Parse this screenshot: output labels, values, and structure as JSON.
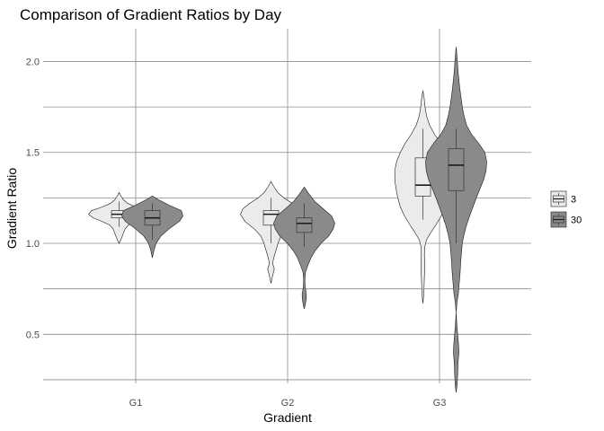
{
  "chart_data": {
    "type": "violin",
    "title": "Comparison of Gradient Ratios by Day",
    "xlabel": "Gradient",
    "ylabel": "Gradient Ratio",
    "categories": [
      "G1",
      "G2",
      "G3"
    ],
    "ylim": [
      0.23,
      2.18
    ],
    "yticks": [
      0.5,
      1.0,
      1.5,
      2.0
    ],
    "ytick_labels": [
      "0.5",
      "1.0",
      "1.5",
      "2.0"
    ],
    "grid": true,
    "legend": {
      "position": "right",
      "entries": [
        "3",
        "30"
      ]
    },
    "series": [
      {
        "name": "3",
        "color": "#ebebeb",
        "violins": [
          {
            "category": "G1",
            "profile": [
              [
                1.0,
                0.0
              ],
              [
                1.02,
                0.06
              ],
              [
                1.05,
                0.13
              ],
              [
                1.08,
                0.2
              ],
              [
                1.1,
                0.3
              ],
              [
                1.12,
                0.55
              ],
              [
                1.14,
                0.85
              ],
              [
                1.16,
                1.0
              ],
              [
                1.18,
                0.9
              ],
              [
                1.2,
                0.55
              ],
              [
                1.22,
                0.28
              ],
              [
                1.24,
                0.14
              ],
              [
                1.26,
                0.06
              ],
              [
                1.28,
                0.0
              ]
            ],
            "box": {
              "q1": 1.14,
              "median": 1.16,
              "q3": 1.18,
              "whisker_low": 1.09,
              "whisker_high": 1.23
            }
          },
          {
            "category": "G2",
            "profile": [
              [
                0.78,
                0.0
              ],
              [
                0.82,
                0.05
              ],
              [
                0.86,
                0.11
              ],
              [
                0.89,
                0.05
              ],
              [
                0.92,
                0.09
              ],
              [
                0.96,
                0.16
              ],
              [
                1.0,
                0.23
              ],
              [
                1.04,
                0.33
              ],
              [
                1.08,
                0.55
              ],
              [
                1.12,
                0.85
              ],
              [
                1.16,
                1.0
              ],
              [
                1.19,
                0.92
              ],
              [
                1.22,
                0.7
              ],
              [
                1.25,
                0.42
              ],
              [
                1.28,
                0.22
              ],
              [
                1.31,
                0.1
              ],
              [
                1.34,
                0.0
              ]
            ],
            "box": {
              "q1": 1.1,
              "median": 1.16,
              "q3": 1.18,
              "whisker_low": 1.0,
              "whisker_high": 1.25
            }
          },
          {
            "category": "G3",
            "profile": [
              [
                0.67,
                0.0
              ],
              [
                0.72,
                0.03
              ],
              [
                0.77,
                0.04
              ],
              [
                0.82,
                0.05
              ],
              [
                0.86,
                0.06
              ],
              [
                0.9,
                0.06
              ],
              [
                0.94,
                0.05
              ],
              [
                0.98,
                0.06
              ],
              [
                1.02,
                0.12
              ],
              [
                1.06,
                0.26
              ],
              [
                1.1,
                0.42
              ],
              [
                1.15,
                0.6
              ],
              [
                1.2,
                0.74
              ],
              [
                1.25,
                0.82
              ],
              [
                1.3,
                0.88
              ],
              [
                1.35,
                0.92
              ],
              [
                1.4,
                0.92
              ],
              [
                1.45,
                0.86
              ],
              [
                1.5,
                0.74
              ],
              [
                1.55,
                0.58
              ],
              [
                1.6,
                0.38
              ],
              [
                1.65,
                0.22
              ],
              [
                1.7,
                0.12
              ],
              [
                1.75,
                0.07
              ],
              [
                1.8,
                0.04
              ],
              [
                1.84,
                0.0
              ]
            ],
            "box": {
              "q1": 1.26,
              "median": 1.32,
              "q3": 1.47,
              "whisker_low": 1.13,
              "whisker_high": 1.63
            }
          }
        ]
      },
      {
        "name": "30",
        "color": "#8a8a8a",
        "violins": [
          {
            "category": "G1",
            "profile": [
              [
                0.92,
                0.0
              ],
              [
                0.96,
                0.05
              ],
              [
                1.0,
                0.12
              ],
              [
                1.04,
                0.28
              ],
              [
                1.08,
                0.55
              ],
              [
                1.12,
                0.88
              ],
              [
                1.15,
                1.0
              ],
              [
                1.18,
                0.95
              ],
              [
                1.21,
                0.55
              ],
              [
                1.24,
                0.2
              ],
              [
                1.26,
                0.0
              ]
            ],
            "box": {
              "q1": 1.1,
              "median": 1.14,
              "q3": 1.18,
              "whisker_low": 1.02,
              "whisker_high": 1.22
            }
          },
          {
            "category": "G2",
            "profile": [
              [
                0.64,
                0.0
              ],
              [
                0.66,
                0.03
              ],
              [
                0.69,
                0.06
              ],
              [
                0.72,
                0.07
              ],
              [
                0.74,
                0.05
              ],
              [
                0.76,
                0.03
              ],
              [
                0.8,
                0.02
              ],
              [
                0.84,
                0.04
              ],
              [
                0.88,
                0.12
              ],
              [
                0.92,
                0.22
              ],
              [
                0.96,
                0.36
              ],
              [
                1.0,
                0.55
              ],
              [
                1.04,
                0.8
              ],
              [
                1.08,
                0.95
              ],
              [
                1.11,
                1.0
              ],
              [
                1.15,
                0.9
              ],
              [
                1.19,
                0.62
              ],
              [
                1.23,
                0.35
              ],
              [
                1.27,
                0.16
              ],
              [
                1.31,
                0.0
              ]
            ],
            "box": {
              "q1": 1.06,
              "median": 1.11,
              "q3": 1.14,
              "whisker_low": 0.98,
              "whisker_high": 1.22
            }
          },
          {
            "category": "G3",
            "profile": [
              [
                0.18,
                0.0
              ],
              [
                0.22,
                0.03
              ],
              [
                0.28,
                0.05
              ],
              [
                0.34,
                0.06
              ],
              [
                0.4,
                0.09
              ],
              [
                0.44,
                0.08
              ],
              [
                0.5,
                0.05
              ],
              [
                0.56,
                0.02
              ],
              [
                0.62,
                0.0
              ],
              [
                0.68,
                0.03
              ],
              [
                0.72,
                0.07
              ],
              [
                0.78,
                0.1
              ],
              [
                0.84,
                0.13
              ],
              [
                0.9,
                0.15
              ],
              [
                0.96,
                0.18
              ],
              [
                1.0,
                0.2
              ],
              [
                1.05,
                0.26
              ],
              [
                1.1,
                0.34
              ],
              [
                1.15,
                0.44
              ],
              [
                1.2,
                0.55
              ],
              [
                1.25,
                0.66
              ],
              [
                1.3,
                0.78
              ],
              [
                1.35,
                0.9
              ],
              [
                1.4,
                0.98
              ],
              [
                1.45,
                1.0
              ],
              [
                1.5,
                0.94
              ],
              [
                1.55,
                0.74
              ],
              [
                1.6,
                0.5
              ],
              [
                1.65,
                0.34
              ],
              [
                1.7,
                0.26
              ],
              [
                1.75,
                0.2
              ],
              [
                1.8,
                0.16
              ],
              [
                1.85,
                0.12
              ],
              [
                1.9,
                0.09
              ],
              [
                1.95,
                0.06
              ],
              [
                2.0,
                0.04
              ],
              [
                2.04,
                0.02
              ],
              [
                2.08,
                0.0
              ]
            ],
            "box": {
              "q1": 1.29,
              "median": 1.43,
              "q3": 1.52,
              "whisker_low": 1.0,
              "whisker_high": 1.63
            }
          }
        ]
      }
    ]
  }
}
